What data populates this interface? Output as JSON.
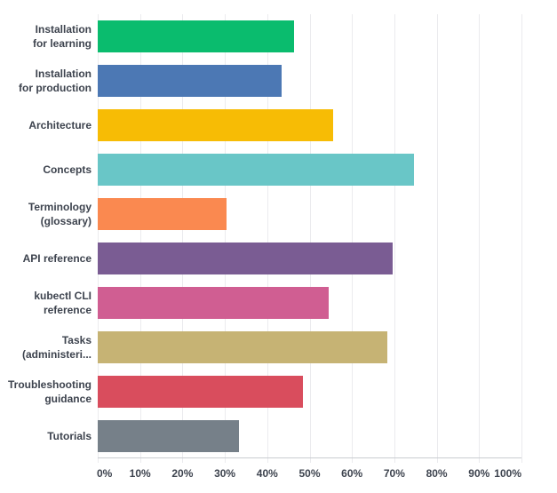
{
  "colors": {
    "background": "#ffffff",
    "text": "#3d434e",
    "gridline": "#ebebee",
    "axis_line": "#c9ccd1"
  },
  "chart_data": {
    "type": "bar",
    "orientation": "horizontal",
    "title": "",
    "xlabel": "",
    "ylabel": "",
    "grid": "vertical",
    "legend": false,
    "x_axis": {
      "min": 0,
      "max": 100,
      "tick_step": 10,
      "tick_labels": [
        "0%",
        "10%",
        "20%",
        "30%",
        "40%",
        "50%",
        "60%",
        "70%",
        "80%",
        "90%",
        "100%"
      ],
      "unit": "%"
    },
    "categories": [
      "Installation for learning",
      "Installation for production",
      "Architecture",
      "Concepts",
      "Terminology (glossary)",
      "API reference",
      "kubectl CLI reference",
      "Tasks (administeri...",
      "Troubleshooting guidance",
      "Tutorials"
    ],
    "label_lines": [
      [
        "Installation",
        "for learning"
      ],
      [
        "Installation",
        "for production"
      ],
      [
        "Architecture"
      ],
      [
        "Concepts"
      ],
      [
        "Terminology",
        "(glossary)"
      ],
      [
        "API reference"
      ],
      [
        "kubectl CLI",
        "reference"
      ],
      [
        "Tasks",
        "(administeri..."
      ],
      [
        "Troubleshooting",
        "guidance"
      ],
      [
        "Tutorials"
      ]
    ],
    "values": [
      46.3,
      43.4,
      55.5,
      74.6,
      30.5,
      69.6,
      54.6,
      68.4,
      48.5,
      33.4
    ],
    "bar_colors": [
      "#0abc6e",
      "#4c78b4",
      "#f7bc05",
      "#69c6c7",
      "#fa8950",
      "#7a5c93",
      "#d05e92",
      "#c6b374",
      "#d94d5d",
      "#768089"
    ]
  }
}
